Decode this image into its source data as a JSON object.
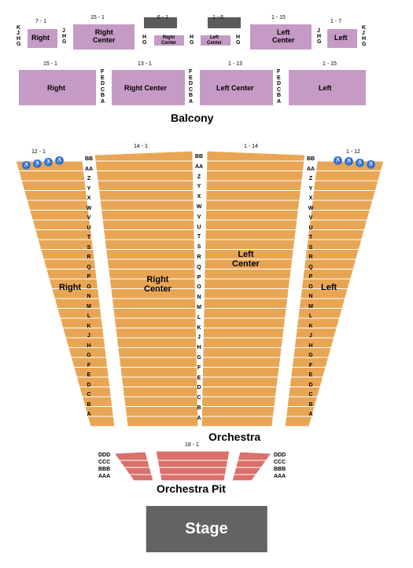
{
  "stage": {
    "label": "Stage",
    "bg": "#636363",
    "fg": "#ffffff"
  },
  "levels": {
    "orchestra_pit": {
      "title": "Orchestra Pit",
      "seat_range": "18 - 1",
      "rows": [
        "AAA",
        "BBB",
        "CCC",
        "DDD"
      ],
      "color": "#d9706b"
    },
    "orchestra": {
      "title": "Orchestra",
      "color": "#e8a654",
      "rows": [
        "A",
        "B",
        "C",
        "D",
        "E",
        "F",
        "G",
        "H",
        "J",
        "K",
        "L",
        "M",
        "N",
        "O",
        "P",
        "Q",
        "R",
        "S",
        "T",
        "U",
        "V",
        "W",
        "X",
        "Y",
        "Z",
        "AA",
        "BB"
      ],
      "sections": {
        "right": {
          "label": "Right",
          "range": "12 - 1"
        },
        "right_center": {
          "label": "Right\nCenter",
          "range": "14 - 1"
        },
        "left_center": {
          "label": "Left\nCenter",
          "range": "1 - 14"
        },
        "left": {
          "label": "Left",
          "range": "1 - 12"
        }
      }
    },
    "balcony": {
      "title": "Balcony",
      "color": "#c59ac5",
      "lower_rows": [
        "A",
        "B",
        "C",
        "D",
        "E",
        "F"
      ],
      "upper_rows": [
        "G",
        "H",
        "J",
        "K"
      ],
      "sections_lower": {
        "right": {
          "label": "Right",
          "range": "15 - 1"
        },
        "right_center": {
          "label": "Right Center",
          "range": "13 - 1"
        },
        "left_center": {
          "label": "Left Center",
          "range": "1 - 13"
        },
        "left": {
          "label": "Left",
          "range": "1 - 15"
        }
      },
      "sections_upper": {
        "right": {
          "label": "Right",
          "range": "7 - 1"
        },
        "right_center": {
          "label": "Right\nCenter",
          "range": "15 - 1"
        },
        "left_center": {
          "label": "Left\nCenter",
          "range": "1 - 15"
        },
        "left": {
          "label": "Left",
          "range": "1 - 7"
        },
        "box_right": {
          "label": "Right\nCenter",
          "range": "6 - 1",
          "rows": [
            "G",
            "H"
          ]
        },
        "box_left": {
          "label": "Left\nCenter",
          "range": "1 - 6",
          "rows": [
            "G",
            "H"
          ]
        }
      }
    }
  },
  "styling": {
    "bg": "#ffffff",
    "text": "#000000",
    "balcony_color": "#c59ac5",
    "orchestra_color": "#e8a654",
    "pit_color": "#d9706b",
    "stage_color": "#636363",
    "empty_box": "#5a5a5a",
    "accessible_color": "#4b7ec4",
    "label_fontsize": 9,
    "title_fontsize": 14,
    "row_fontsize": 7
  }
}
